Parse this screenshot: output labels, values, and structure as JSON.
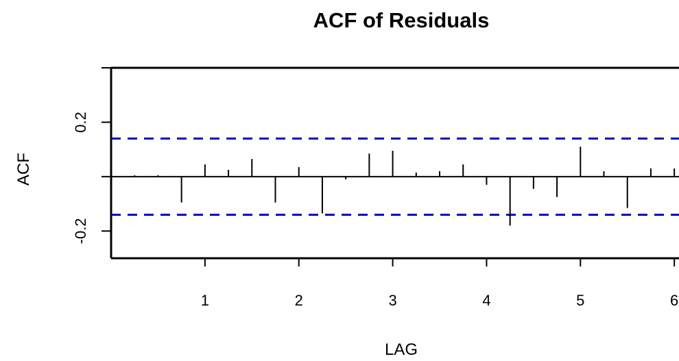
{
  "chart_data": {
    "type": "bar",
    "title": "ACF of Residuals",
    "xlabel": "LAG",
    "ylabel": "ACF",
    "xlim": [
      0,
      6.05
    ],
    "ylim": [
      -0.3,
      0.4
    ],
    "x_ticks": [
      1,
      2,
      3,
      4,
      5,
      6
    ],
    "x_tick_labels": [
      "1",
      "2",
      "3",
      "4",
      "5",
      "6"
    ],
    "y_ticks": [
      -0.2,
      0,
      0.2,
      0.4
    ],
    "y_tick_labels": [
      "-0.2",
      "",
      "0.2",
      ""
    ],
    "confidence_bound": 0.14,
    "series": [
      {
        "x": [
          0.25,
          0.5,
          0.75,
          1.0,
          1.25,
          1.5,
          1.75,
          2.0,
          2.25,
          2.5,
          2.75,
          3.0,
          3.25,
          3.5,
          3.75,
          4.0,
          4.25,
          4.5,
          4.75,
          5.0,
          5.25,
          5.5,
          5.75,
          6.0
        ],
        "values": [
          0.005,
          0.005,
          -0.095,
          0.045,
          0.025,
          0.065,
          -0.095,
          0.035,
          -0.135,
          -0.01,
          0.085,
          0.095,
          0.015,
          0.02,
          0.045,
          -0.03,
          -0.18,
          -0.045,
          -0.075,
          0.11,
          0.02,
          -0.115,
          0.03,
          0.03
        ]
      }
    ],
    "colors": {
      "stems": "#000000",
      "confidence_lines": "#0000cc",
      "zero_line": "#000000",
      "frame": "#000000"
    }
  }
}
